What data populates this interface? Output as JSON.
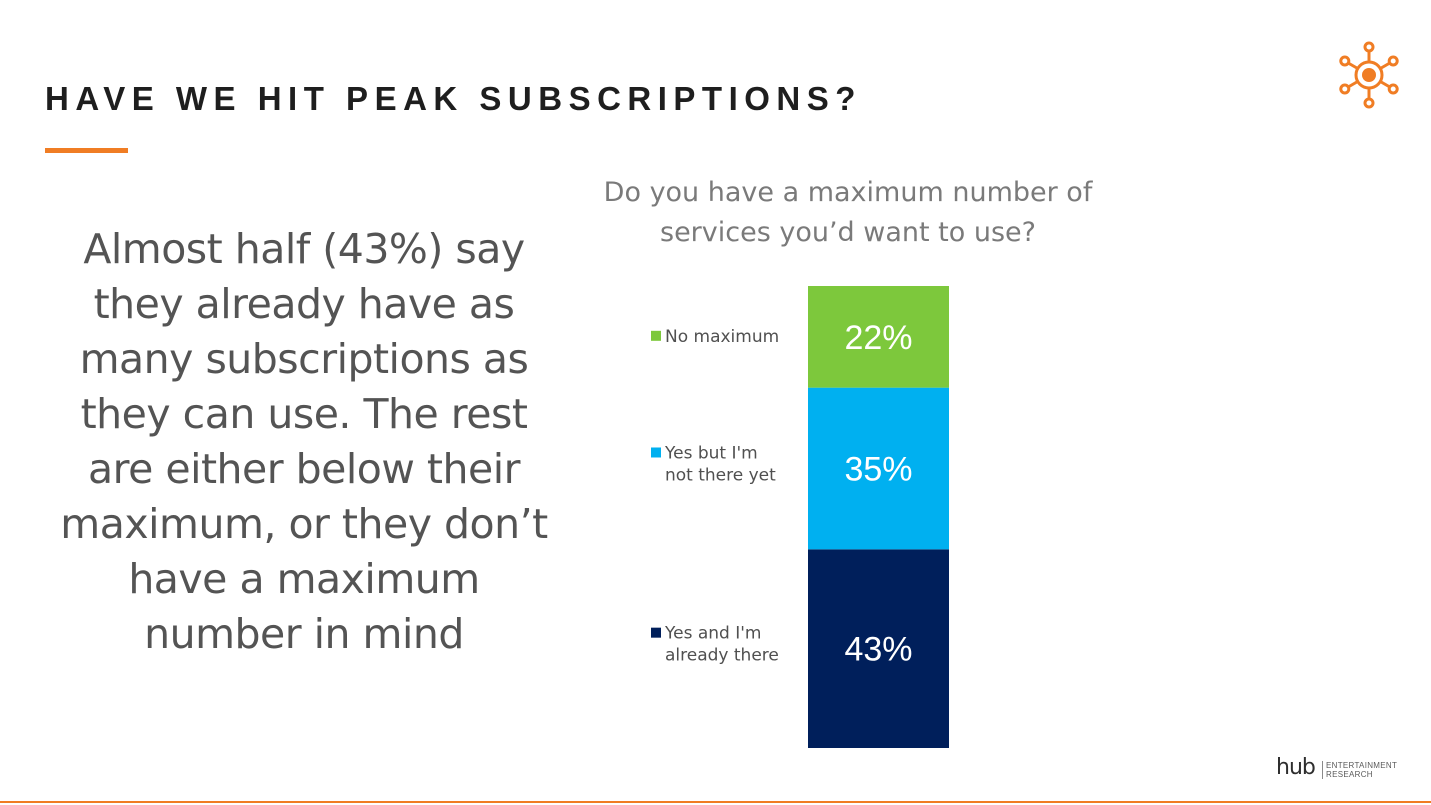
{
  "slide": {
    "title": "HAVE WE HIT PEAK SUBSCRIPTIONS?",
    "body": "Almost half (43%) say they already have as many subscriptions as they can use.  The rest are either below their maximum, or they don’t have a maximum number in mind",
    "accent_color": "#f07d24"
  },
  "footer": {
    "logo_word": "hub",
    "logo_sub_line1": "ENTERTAINMENT",
    "logo_sub_line2": "RESEARCH"
  },
  "chart_data": {
    "type": "bar",
    "stacked": true,
    "title": "Do you have a maximum number of services you’d want to use?",
    "legend_position": "left",
    "grid": false,
    "ylim": [
      0,
      100
    ],
    "series": [
      {
        "name": "Yes and I'm already there",
        "value": 43,
        "label": "43%",
        "color": "#001f5b"
      },
      {
        "name": "Yes but I'm not there yet",
        "value": 35,
        "label": "35%",
        "color": "#00b0f0"
      },
      {
        "name": "No maximum",
        "value": 22,
        "label": "22%",
        "color": "#7dc83c"
      }
    ]
  }
}
